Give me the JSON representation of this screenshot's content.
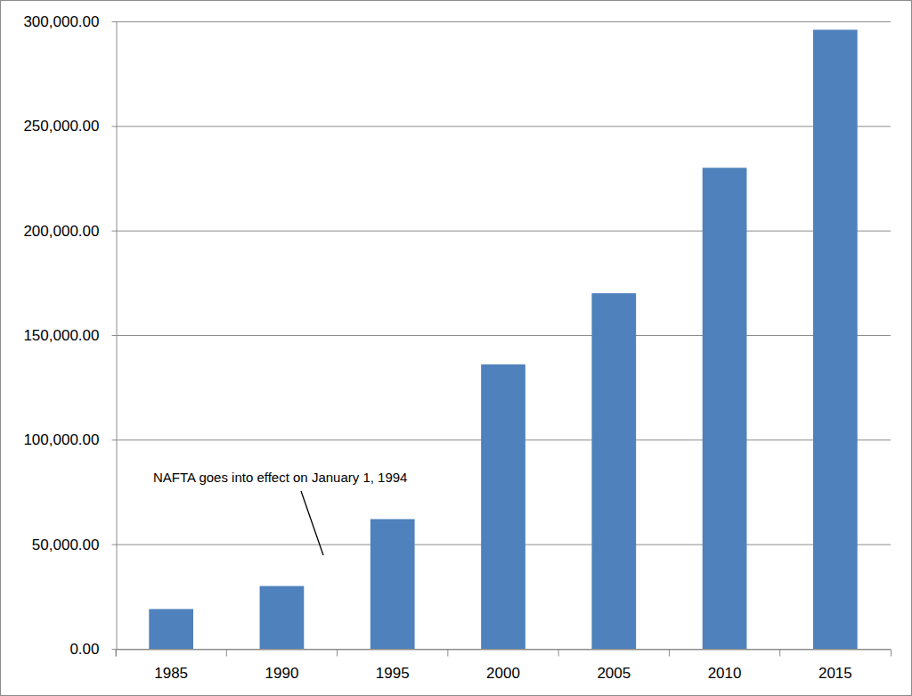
{
  "chart_data": {
    "type": "bar",
    "categories": [
      "1985",
      "1990",
      "1995",
      "2000",
      "2005",
      "2010",
      "2015"
    ],
    "values": [
      19000,
      30000,
      62000,
      136000,
      170000,
      230000,
      296000
    ],
    "color": "#4f81bd",
    "ylim": [
      0,
      300000
    ],
    "yticks": [
      {
        "value": 0,
        "label": "0.00"
      },
      {
        "value": 50000,
        "label": "50,000.00"
      },
      {
        "value": 100000,
        "label": "100,000.00"
      },
      {
        "value": 150000,
        "label": "150,000.00"
      },
      {
        "value": 200000,
        "label": "200,000.00"
      },
      {
        "value": 250000,
        "label": "250,000.00"
      },
      {
        "value": 300000,
        "label": "300,000.00"
      }
    ],
    "grid": true,
    "annotation": "NAFTA goes into effect on January 1, 1994"
  }
}
